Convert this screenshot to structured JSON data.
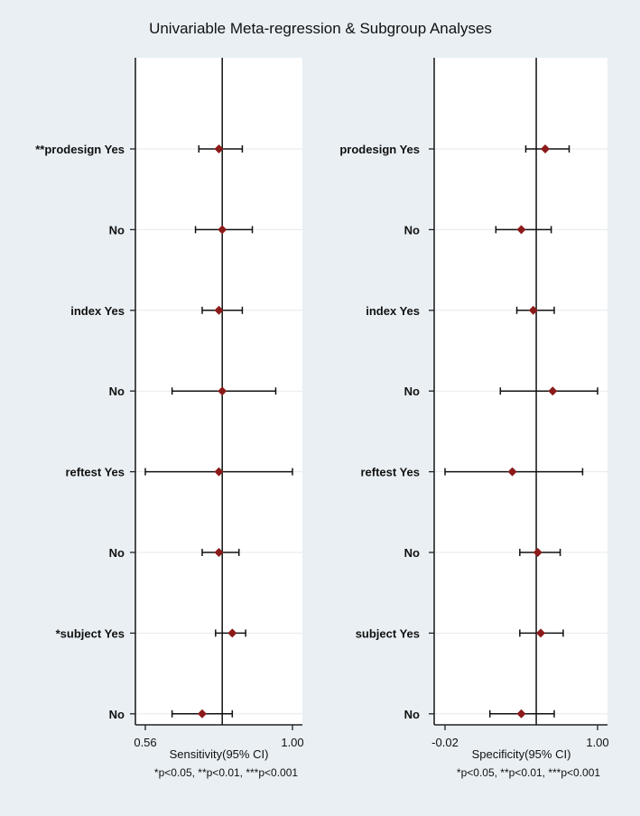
{
  "title": "Univariable Meta-regression & Subgroup Analyses",
  "chart_data": [
    {
      "type": "forest",
      "xlabel": "Sensitivity(95% CI)",
      "footnote": "*p<0.05, **p<0.01, ***p<0.001",
      "xlim": [
        0.56,
        1.0
      ],
      "xticks": [
        "0.56",
        "1.00"
      ],
      "reference_line": 0.79,
      "grid": true,
      "marker_color": "#8b1a1a",
      "rows": [
        {
          "label": "**prodesign Yes",
          "estimate": 0.78,
          "lower": 0.72,
          "upper": 0.85
        },
        {
          "label": "No",
          "estimate": 0.79,
          "lower": 0.71,
          "upper": 0.88
        },
        {
          "label": "index Yes",
          "estimate": 0.78,
          "lower": 0.73,
          "upper": 0.85
        },
        {
          "label": "No",
          "estimate": 0.79,
          "lower": 0.64,
          "upper": 0.95
        },
        {
          "label": "reftest Yes",
          "estimate": 0.78,
          "lower": 0.56,
          "upper": 1.0
        },
        {
          "label": "No",
          "estimate": 0.78,
          "lower": 0.73,
          "upper": 0.84
        },
        {
          "label": "*subject Yes",
          "estimate": 0.82,
          "lower": 0.77,
          "upper": 0.86
        },
        {
          "label": "No",
          "estimate": 0.73,
          "lower": 0.64,
          "upper": 0.82
        }
      ]
    },
    {
      "type": "forest",
      "xlabel": "Specificity(95% CI)",
      "footnote": "*p<0.05, **p<0.01, ***p<0.001",
      "xlim": [
        -0.02,
        1.0
      ],
      "xticks": [
        "-0.02",
        "1.00"
      ],
      "reference_line": 0.59,
      "grid": true,
      "marker_color": "#8b1a1a",
      "rows": [
        {
          "label": "prodesign Yes",
          "estimate": 0.65,
          "lower": 0.52,
          "upper": 0.81
        },
        {
          "label": "No",
          "estimate": 0.49,
          "lower": 0.32,
          "upper": 0.69
        },
        {
          "label": "index Yes",
          "estimate": 0.57,
          "lower": 0.46,
          "upper": 0.71
        },
        {
          "label": "No",
          "estimate": 0.7,
          "lower": 0.35,
          "upper": 1.0
        },
        {
          "label": "reftest Yes",
          "estimate": 0.43,
          "lower": -0.02,
          "upper": 0.9
        },
        {
          "label": "No",
          "estimate": 0.6,
          "lower": 0.48,
          "upper": 0.75
        },
        {
          "label": "subject Yes",
          "estimate": 0.62,
          "lower": 0.48,
          "upper": 0.77
        },
        {
          "label": "No",
          "estimate": 0.49,
          "lower": 0.28,
          "upper": 0.71
        }
      ]
    }
  ]
}
